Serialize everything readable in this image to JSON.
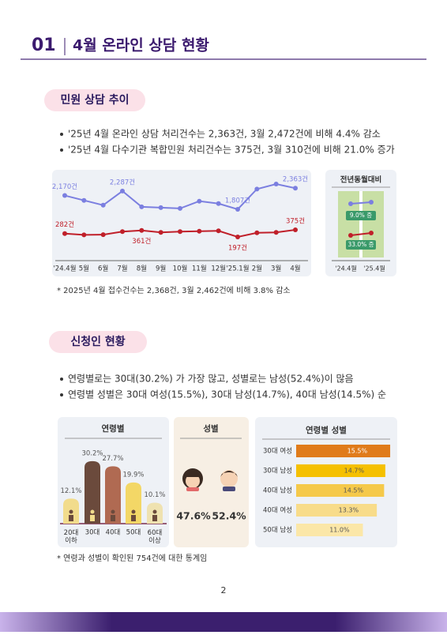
{
  "header": {
    "number": "01",
    "title": "4월 온라인 상담 현황"
  },
  "section1": {
    "title": "민원 상담 추이",
    "bullets": [
      "'25년 4월 온라인 상담 처리건수는 2,363건, 3월 2,472건에 비해 4.4% 감소",
      "'25년 4월 다수기관 복합민원 처리건수는 375건, 3월 310건에 비해 21.0% 증가"
    ],
    "footnote": "* 2025년 4월 접수건수는 2,368건, 3월 2,462건에 비해 3.8% 감소"
  },
  "section2": {
    "title": "신청인 현황",
    "bullets": [
      "연령별로는 30대(30.2%) 가 가장 많고, 성별로는 남성(52.4%)이 많음",
      "연령별 성별은 30대 여성(15.5%), 30대 남성(14.7%), 40대 남성(14.5%) 순"
    ],
    "footnote": "* 연령과 성별이 확인된 754건에 대한 통계임"
  },
  "chart_data": [
    {
      "type": "line",
      "categories": [
        "'24.4월",
        "5월",
        "6월",
        "7월",
        "8월",
        "9월",
        "10월",
        "11월",
        "12월",
        "'25.1월",
        "2월",
        "3월",
        "4월"
      ],
      "series": [
        {
          "color": "#7b7fe0",
          "values": [
            2170,
            2042,
            1915,
            2287,
            1872,
            1851,
            1830,
            2021,
            1957,
            1807,
            2340,
            2472,
            2363
          ],
          "value_labels": [
            "2,170건",
            null,
            null,
            "2,287건",
            null,
            null,
            null,
            null,
            null,
            "1,807건",
            null,
            null,
            "2,363건"
          ]
        },
        {
          "color": "#c0202a",
          "values": [
            282,
            250,
            255,
            330,
            361,
            310,
            330,
            340,
            350,
            197,
            300,
            310,
            375
          ],
          "value_labels": [
            "282건",
            null,
            null,
            null,
            "361건",
            null,
            null,
            null,
            null,
            "197건",
            null,
            null,
            "375건"
          ]
        }
      ]
    },
    {
      "type": "line",
      "title": "전년동월대비",
      "categories": [
        "'24.4월",
        "'25.4월"
      ],
      "series": [
        {
          "color": "#7b7fe0",
          "values": [
            2170,
            2363
          ],
          "change_label": "9.0% 증"
        },
        {
          "color": "#c0202a",
          "values": [
            282,
            375
          ],
          "change_label": "33.0% 증"
        }
      ]
    },
    {
      "type": "bar",
      "title": "연령별",
      "categories": [
        "20대\n이하",
        "30대",
        "40대",
        "50대",
        "60대\n이상"
      ],
      "values": [
        12.1,
        30.2,
        27.7,
        19.9,
        10.1
      ],
      "value_labels": [
        "12.1%",
        "30.2%",
        "27.7%",
        "19.9%",
        "10.1%"
      ],
      "colors": [
        "#f2dc8c",
        "#6b4a3c",
        "#b06a52",
        "#f3d766",
        "#efe2b0"
      ]
    },
    {
      "type": "stat",
      "title": "성별",
      "values": [
        47.6,
        52.4
      ],
      "value_labels": [
        "47.6%",
        "52.4%"
      ]
    },
    {
      "type": "hbar",
      "title": "연령별 성별",
      "categories": [
        "30대 여성",
        "30대 남성",
        "40대 남성",
        "40대 여성",
        "50대 남성"
      ],
      "values": [
        15.5,
        14.7,
        14.5,
        13.3,
        11.0
      ],
      "value_labels": [
        "15.5%",
        "14.7%",
        "14.5%",
        "13.3%",
        "11.0%"
      ],
      "colors": [
        "#e07b1a",
        "#f5c000",
        "#f5c94a",
        "#f8dc8a",
        "#fbe7a8"
      ]
    }
  ],
  "page_number": 2
}
